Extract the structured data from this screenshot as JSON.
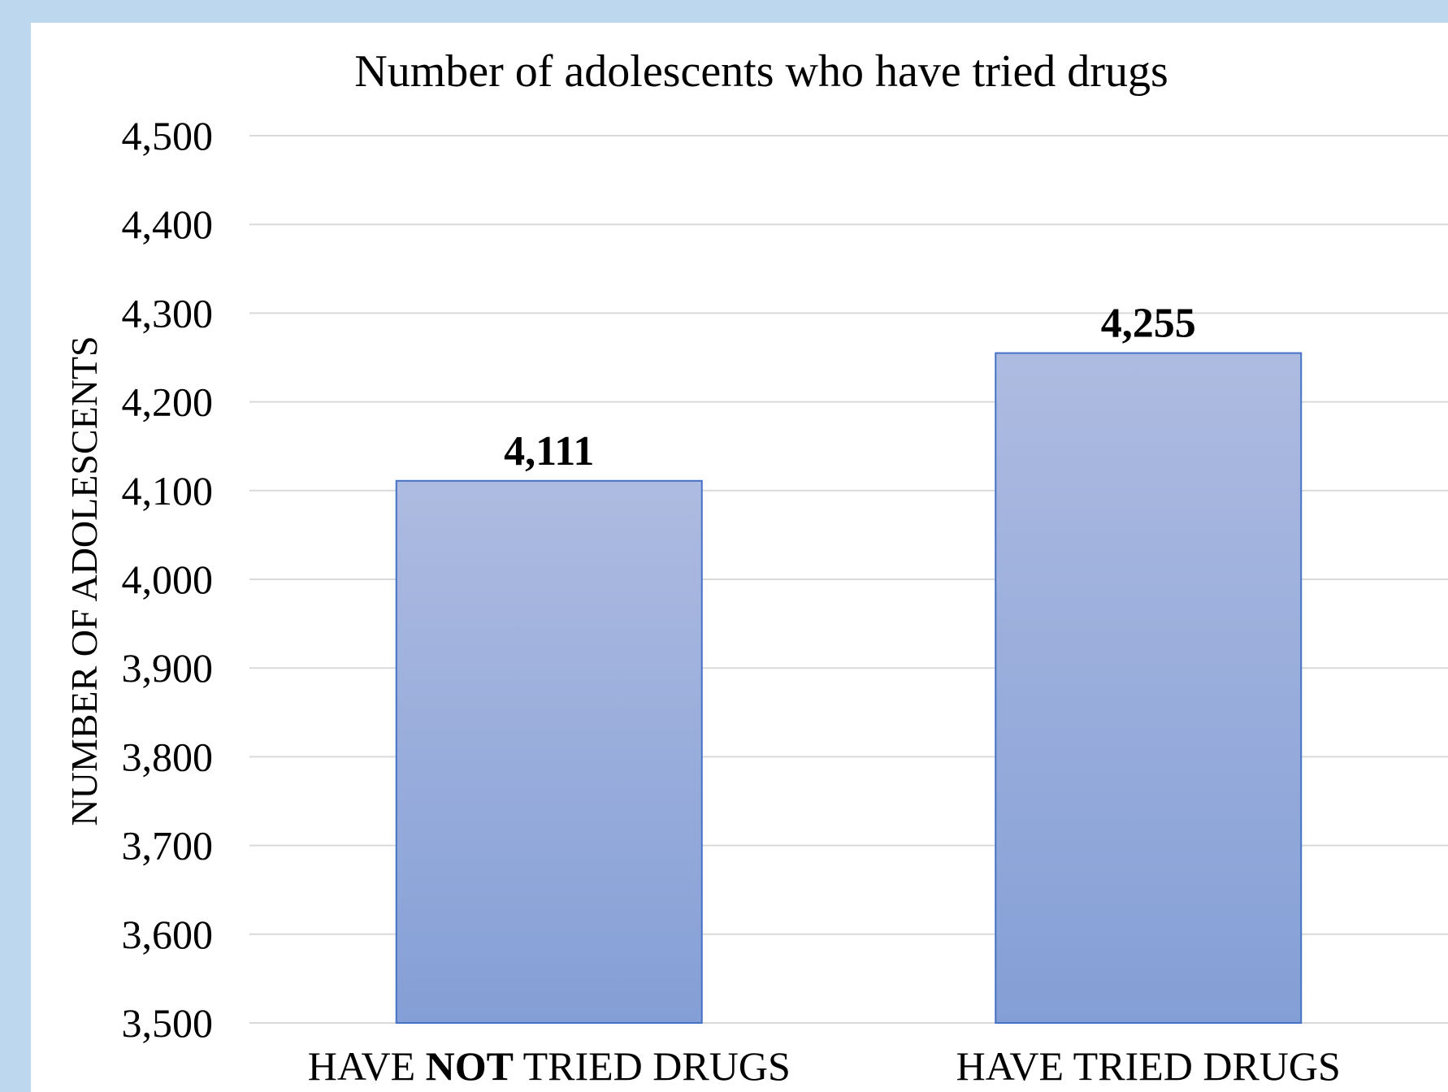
{
  "chart_data": {
    "type": "bar",
    "title": "Number of adolescents who have tried drugs",
    "xlabel": "",
    "ylabel": "NUMBER OF ADOLESCENTS",
    "ylim": [
      3500,
      4500
    ],
    "yticks": [
      3500,
      3600,
      3700,
      3800,
      3900,
      4000,
      4100,
      4200,
      4300,
      4400,
      4500
    ],
    "ytick_labels": [
      "3,500",
      "3,600",
      "3,700",
      "3,800",
      "3,900",
      "4,000",
      "4,100",
      "4,200",
      "4,300",
      "4,400",
      "4,500"
    ],
    "categories": [
      {
        "parts": [
          {
            "text": "HAVE ",
            "bold": false
          },
          {
            "text": "NOT",
            "bold": true
          },
          {
            "text": " TRIED DRUGS",
            "bold": false
          }
        ]
      },
      {
        "parts": [
          {
            "text": "HAVE TRIED DRUGS",
            "bold": false
          }
        ]
      }
    ],
    "values": [
      4111,
      4255
    ],
    "data_labels": [
      "4,111",
      "4,255"
    ],
    "grid": true,
    "legend": "none",
    "bar_gradient": [
      "#aebbe1",
      "#849fd6"
    ],
    "bar_border_color": "#4472c4"
  }
}
